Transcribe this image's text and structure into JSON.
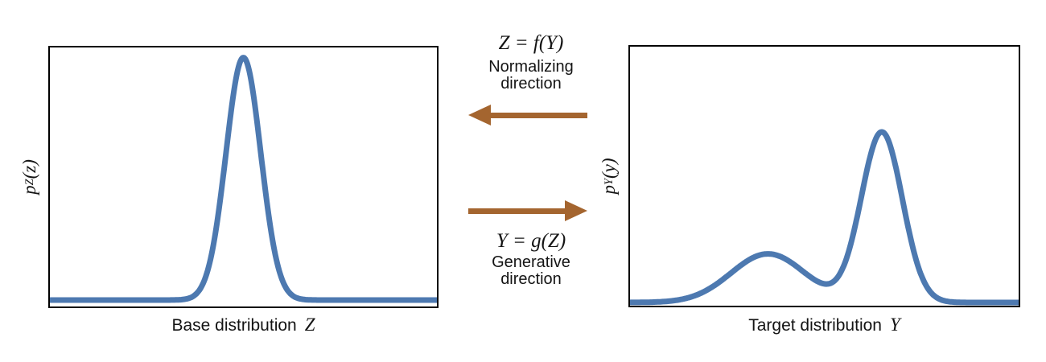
{
  "colors": {
    "curve": "#4d79b0",
    "arrow": "#a4652f",
    "border": "#000000",
    "text": "#141414",
    "background": "#ffffff"
  },
  "figure": {
    "left_panel": {
      "y_label": {
        "base": "p",
        "sub": "Z",
        "args": "(z)"
      },
      "x_label": {
        "text": "Base distribution",
        "math": "Z"
      }
    },
    "right_panel": {
      "y_label": {
        "base": "p",
        "sub": "Y",
        "args": "(y)"
      },
      "x_label": {
        "text": "Target distribution",
        "math": "Y"
      }
    },
    "middle": {
      "normalizing": {
        "formula": "Z = f(Y)",
        "line1": "Normalizing",
        "line2": "direction",
        "arrow": "left"
      },
      "generative": {
        "formula": "Y = g(Z)",
        "line1": "Generative",
        "line2": "direction",
        "arrow": "right"
      }
    }
  },
  "chart_data": [
    {
      "type": "line",
      "title": "Base distribution Z",
      "xlabel": "Base distribution Z",
      "ylabel": "p_Z(z)",
      "axis_ticks": "none",
      "grid": false,
      "legend": "none",
      "description": "unimodal gaussian density, peak near center",
      "x_range": [
        0,
        1
      ],
      "components": [
        {
          "mean": 0.5,
          "sigma": 0.045,
          "amplitude": 0.96
        }
      ]
    },
    {
      "type": "line",
      "title": "Target distribution Y",
      "xlabel": "Target distribution Y",
      "ylabel": "p_Y(y)",
      "axis_ticks": "none",
      "grid": false,
      "legend": "none",
      "description": "bimodal gaussian mixture: broad low bump left, tall narrow peak right",
      "x_range": [
        0,
        1
      ],
      "components": [
        {
          "mean": 0.355,
          "sigma": 0.095,
          "amplitude": 0.19
        },
        {
          "mean": 0.648,
          "sigma": 0.053,
          "amplitude": 0.665
        }
      ]
    }
  ]
}
